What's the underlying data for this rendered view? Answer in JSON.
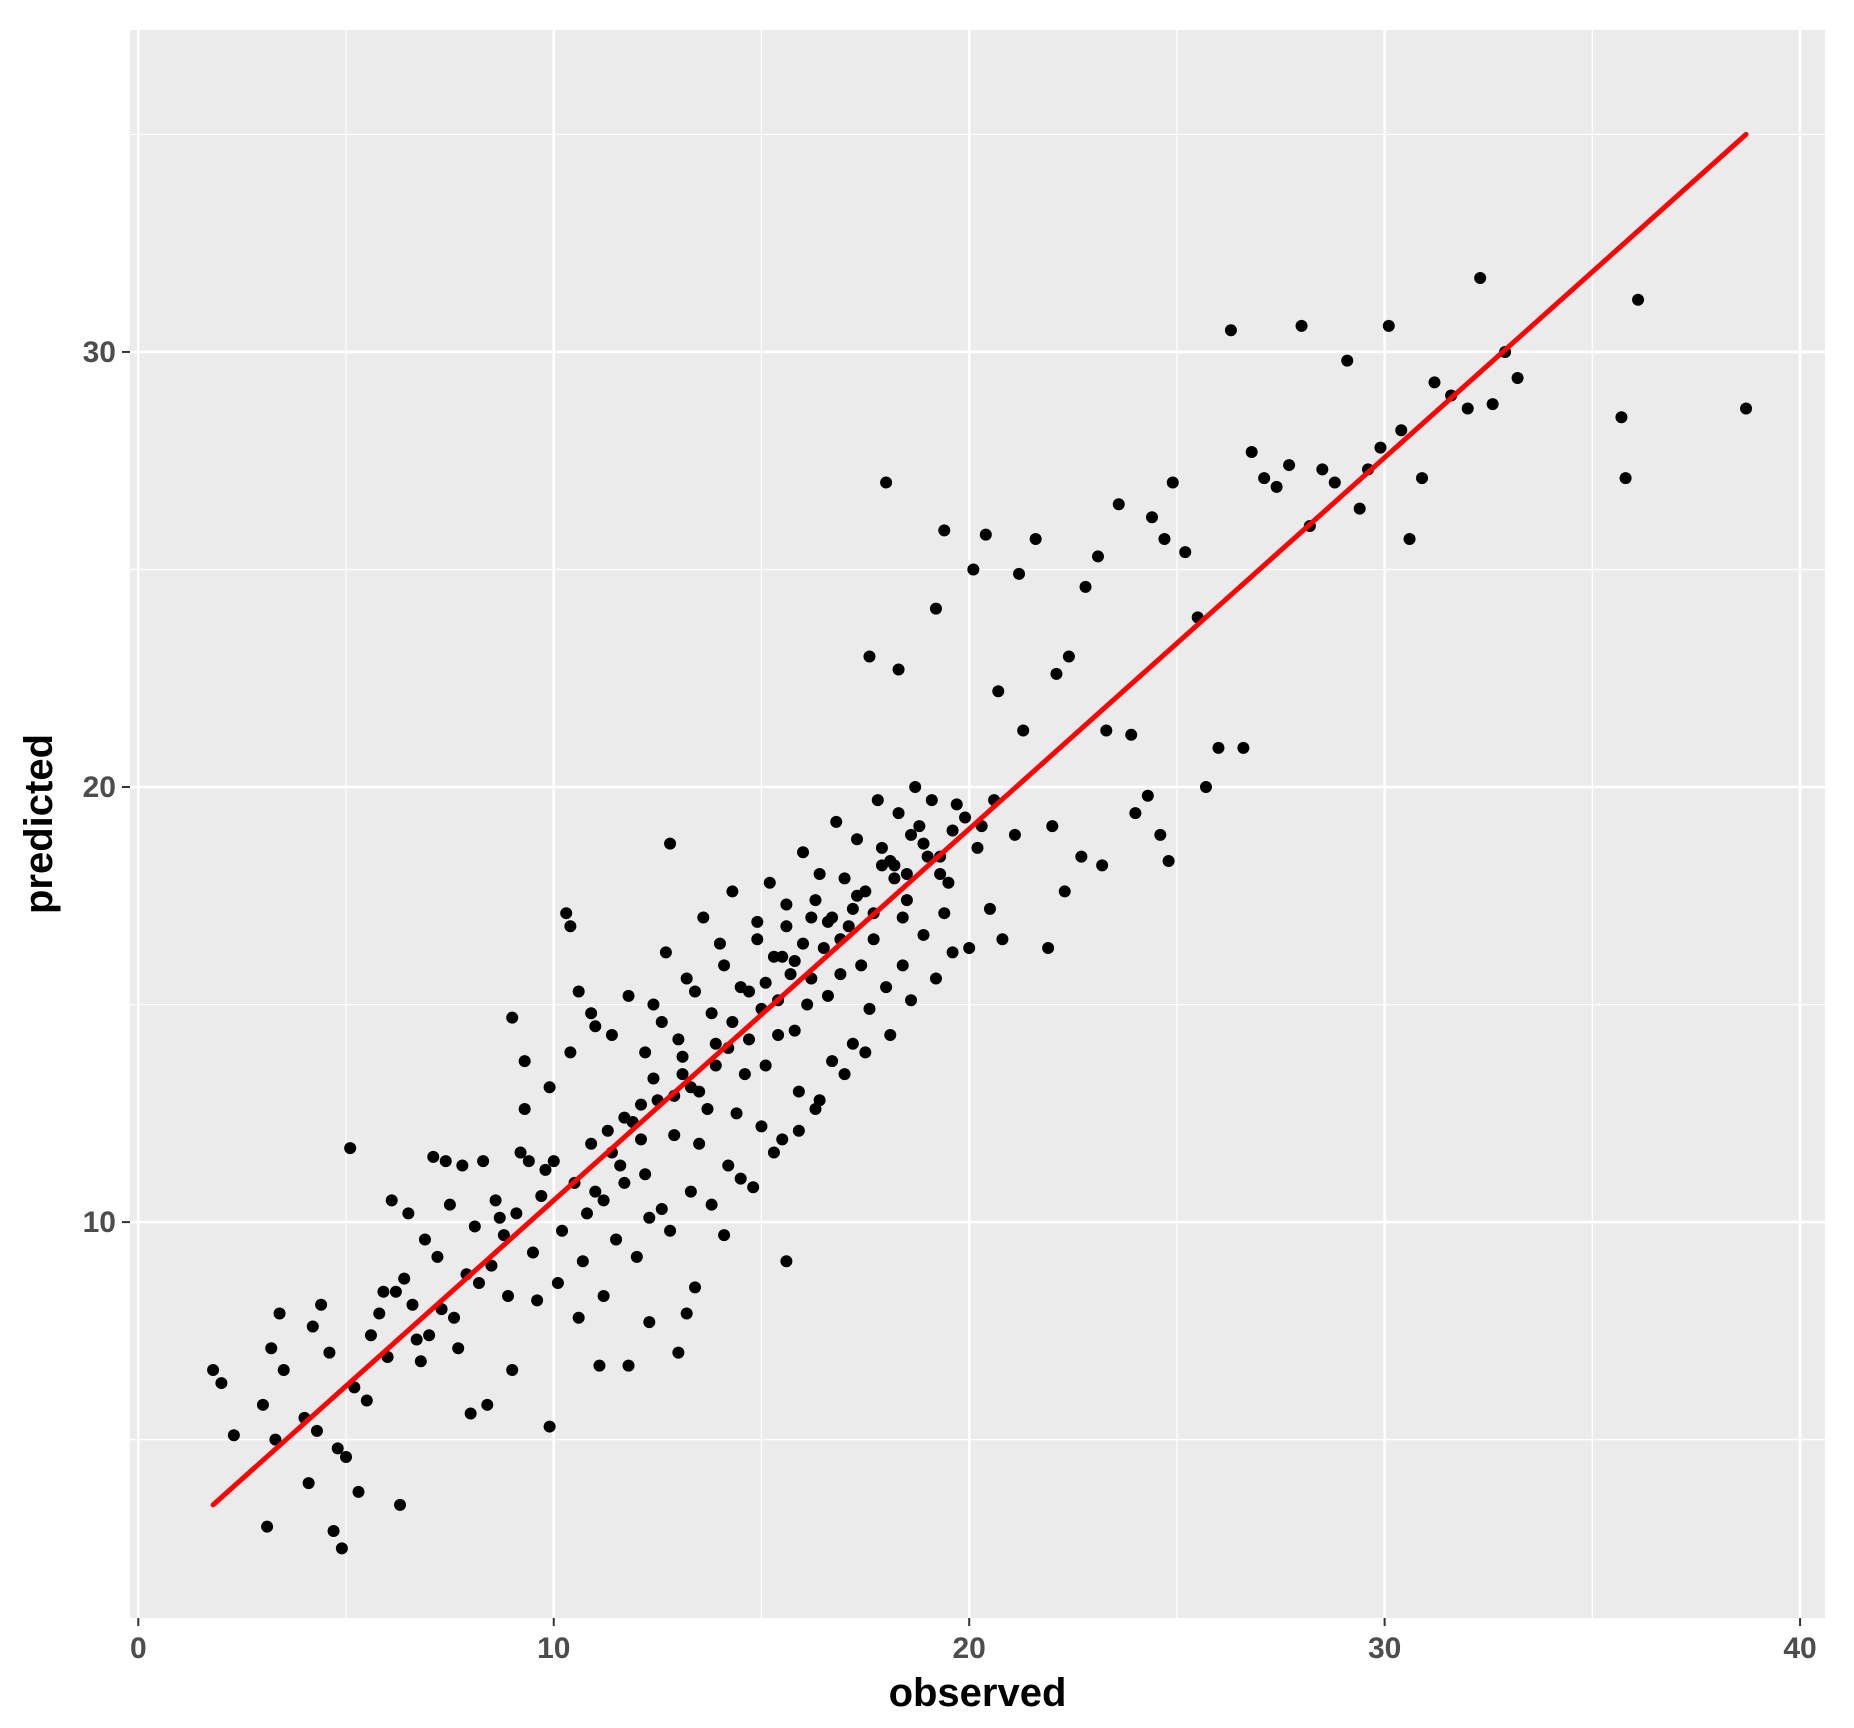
{
  "chart_data": {
    "type": "scatter",
    "title": "",
    "xlabel": "observed",
    "ylabel": "predicted",
    "xlim": [
      -0.2,
      40.6
    ],
    "ylim": [
      0.9,
      37.4
    ],
    "x_ticks": [
      0,
      10,
      20,
      30,
      40
    ],
    "y_ticks": [
      10,
      20,
      30
    ],
    "grid": true,
    "legend": "none",
    "colors": {
      "panel_background": "#ebebeb",
      "grid": "#ffffff",
      "points": "#000000",
      "fit_line": "#ff0000"
    },
    "fit_line": {
      "x": [
        1.8,
        38.7
      ],
      "y": [
        3.5,
        35.0
      ]
    },
    "series": [
      {
        "values": [
          [
            1.8,
            6.6
          ],
          [
            2.0,
            6.3
          ],
          [
            3.0,
            5.8
          ],
          [
            3.1,
            3.0
          ],
          [
            3.4,
            7.9
          ],
          [
            3.5,
            6.6
          ],
          [
            3.3,
            5.0
          ],
          [
            4.0,
            5.5
          ],
          [
            4.1,
            4.0
          ],
          [
            4.3,
            5.2
          ],
          [
            4.2,
            7.6
          ],
          [
            4.6,
            7.0
          ],
          [
            4.7,
            2.9
          ],
          [
            4.8,
            4.8
          ],
          [
            5.0,
            4.6
          ],
          [
            5.2,
            6.2
          ],
          [
            5.3,
            3.8
          ],
          [
            5.5,
            5.9
          ],
          [
            5.6,
            7.4
          ],
          [
            5.9,
            8.4
          ],
          [
            6.0,
            6.9
          ],
          [
            6.3,
            3.5
          ],
          [
            6.6,
            8.1
          ],
          [
            6.8,
            6.8
          ],
          [
            3.2,
            7.1
          ],
          [
            4.4,
            8.1
          ],
          [
            2.3,
            5.1
          ],
          [
            4.9,
            2.5
          ],
          [
            5.1,
            11.7
          ],
          [
            6.1,
            10.5
          ],
          [
            6.5,
            10.2
          ],
          [
            7.1,
            11.5
          ],
          [
            7.4,
            11.4
          ],
          [
            7.8,
            11.3
          ],
          [
            8.3,
            11.4
          ],
          [
            8.6,
            10.5
          ],
          [
            9.2,
            11.6
          ],
          [
            9.4,
            11.4
          ],
          [
            9.0,
            14.7
          ],
          [
            9.3,
            13.7
          ],
          [
            10.3,
            17.1
          ],
          [
            10.6,
            15.3
          ],
          [
            10.4,
            16.8
          ],
          [
            11.0,
            14.5
          ],
          [
            8.0,
            5.6
          ],
          [
            8.4,
            5.8
          ],
          [
            9.0,
            6.6
          ],
          [
            9.9,
            5.3
          ],
          [
            10.6,
            7.8
          ],
          [
            11.1,
            6.7
          ],
          [
            11.8,
            6.7
          ],
          [
            12.3,
            7.7
          ],
          [
            13.2,
            7.9
          ],
          [
            15.6,
            9.1
          ],
          [
            12.8,
            18.7
          ],
          [
            17.6,
            23.0
          ],
          [
            18.0,
            27.0
          ],
          [
            18.3,
            22.7
          ],
          [
            19.2,
            24.1
          ],
          [
            19.4,
            25.9
          ],
          [
            20.1,
            25.0
          ],
          [
            20.4,
            25.8
          ],
          [
            20.7,
            22.2
          ],
          [
            21.3,
            21.3
          ],
          [
            21.2,
            24.9
          ],
          [
            21.6,
            25.7
          ],
          [
            22.1,
            22.6
          ],
          [
            22.4,
            23.0
          ],
          [
            22.8,
            24.6
          ],
          [
            23.1,
            25.3
          ],
          [
            23.3,
            21.3
          ],
          [
            23.6,
            26.5
          ],
          [
            23.9,
            21.2
          ],
          [
            24.4,
            26.2
          ],
          [
            24.7,
            25.7
          ],
          [
            24.9,
            27.0
          ],
          [
            25.2,
            25.4
          ],
          [
            25.5,
            23.9
          ],
          [
            25.7,
            20.0
          ],
          [
            26.0,
            20.9
          ],
          [
            26.3,
            30.5
          ],
          [
            26.6,
            20.9
          ],
          [
            26.8,
            27.7
          ],
          [
            27.1,
            27.1
          ],
          [
            27.4,
            26.9
          ],
          [
            27.7,
            27.4
          ],
          [
            28.0,
            30.6
          ],
          [
            28.2,
            26.0
          ],
          [
            28.5,
            27.3
          ],
          [
            28.8,
            27.0
          ],
          [
            29.1,
            29.8
          ],
          [
            29.4,
            26.4
          ],
          [
            29.6,
            27.3
          ],
          [
            29.9,
            27.8
          ],
          [
            30.1,
            30.6
          ],
          [
            30.4,
            28.2
          ],
          [
            30.6,
            25.7
          ],
          [
            30.9,
            27.1
          ],
          [
            31.2,
            29.3
          ],
          [
            31.6,
            29.0
          ],
          [
            32.0,
            28.7
          ],
          [
            32.3,
            31.7
          ],
          [
            32.6,
            28.8
          ],
          [
            32.9,
            30.0
          ],
          [
            33.2,
            29.4
          ],
          [
            35.7,
            28.5
          ],
          [
            35.8,
            27.1
          ],
          [
            36.1,
            31.2
          ],
          [
            38.7,
            28.7
          ],
          [
            24.0,
            19.4
          ],
          [
            24.3,
            19.8
          ],
          [
            24.6,
            18.9
          ],
          [
            24.8,
            18.3
          ],
          [
            22.0,
            19.1
          ],
          [
            22.3,
            17.6
          ],
          [
            22.7,
            18.4
          ],
          [
            23.2,
            18.2
          ],
          [
            21.9,
            16.3
          ],
          [
            20.5,
            17.2
          ],
          [
            20.0,
            16.3
          ],
          [
            20.8,
            16.5
          ],
          [
            13.0,
            7.0
          ],
          [
            13.4,
            8.5
          ],
          [
            14.1,
            9.7
          ],
          [
            14.8,
            10.8
          ],
          [
            15.3,
            11.6
          ],
          [
            15.9,
            12.1
          ],
          [
            16.4,
            12.8
          ],
          [
            17.0,
            13.4
          ],
          [
            17.5,
            13.9
          ],
          [
            18.1,
            14.3
          ],
          [
            18.6,
            15.1
          ],
          [
            19.2,
            15.6
          ],
          [
            19.6,
            16.2
          ],
          [
            6.9,
            9.6
          ],
          [
            7.2,
            9.2
          ],
          [
            7.5,
            10.4
          ],
          [
            7.9,
            8.8
          ],
          [
            8.1,
            9.9
          ],
          [
            8.7,
            10.1
          ],
          [
            9.5,
            9.3
          ],
          [
            9.8,
            11.2
          ],
          [
            6.4,
            8.7
          ],
          [
            7.0,
            7.4
          ],
          [
            7.6,
            7.8
          ],
          [
            8.2,
            8.6
          ],
          [
            8.8,
            9.7
          ],
          [
            9.6,
            8.2
          ],
          [
            10.0,
            11.4
          ],
          [
            10.8,
            10.2
          ],
          [
            11.3,
            12.1
          ],
          [
            11.7,
            10.9
          ],
          [
            12.1,
            12.7
          ],
          [
            12.6,
            10.3
          ],
          [
            13.1,
            13.4
          ],
          [
            13.5,
            11.8
          ],
          [
            13.9,
            14.1
          ],
          [
            14.4,
            12.5
          ],
          [
            14.7,
            15.3
          ],
          [
            15.1,
            13.6
          ],
          [
            15.5,
            16.1
          ],
          [
            15.8,
            14.4
          ],
          [
            16.2,
            17.0
          ],
          [
            16.6,
            15.2
          ],
          [
            17.1,
            16.8
          ],
          [
            17.4,
            15.9
          ],
          [
            17.9,
            18.2
          ],
          [
            18.4,
            17.0
          ],
          [
            18.8,
            19.1
          ],
          [
            19.3,
            18.0
          ],
          [
            19.7,
            19.6
          ],
          [
            20.2,
            18.6
          ],
          [
            20.6,
            19.7
          ],
          [
            21.1,
            18.9
          ],
          [
            5.8,
            7.9
          ],
          [
            6.2,
            8.4
          ],
          [
            6.7,
            7.3
          ],
          [
            7.3,
            8.0
          ],
          [
            7.7,
            7.1
          ],
          [
            8.5,
            9.0
          ],
          [
            8.9,
            8.3
          ],
          [
            9.1,
            10.2
          ],
          [
            9.7,
            10.6
          ],
          [
            10.2,
            9.8
          ],
          [
            10.5,
            10.9
          ],
          [
            10.9,
            11.8
          ],
          [
            11.2,
            10.5
          ],
          [
            11.6,
            11.3
          ],
          [
            11.9,
            12.3
          ],
          [
            12.2,
            11.1
          ],
          [
            12.5,
            12.8
          ],
          [
            12.9,
            12.0
          ],
          [
            13.3,
            13.1
          ],
          [
            13.7,
            12.6
          ],
          [
            14.2,
            14.0
          ],
          [
            14.6,
            13.4
          ],
          [
            15.0,
            14.9
          ],
          [
            15.4,
            14.3
          ],
          [
            15.7,
            15.7
          ],
          [
            16.1,
            15.0
          ],
          [
            16.5,
            16.3
          ],
          [
            16.9,
            15.7
          ],
          [
            17.2,
            17.2
          ],
          [
            17.7,
            16.5
          ],
          [
            18.2,
            17.9
          ],
          [
            18.5,
            17.4
          ],
          [
            19.0,
            18.4
          ],
          [
            19.5,
            17.8
          ],
          [
            19.9,
            19.3
          ],
          [
            20.3,
            19.1
          ],
          [
            9.3,
            12.6
          ],
          [
            9.9,
            13.1
          ],
          [
            10.4,
            13.9
          ],
          [
            10.9,
            14.8
          ],
          [
            11.4,
            14.3
          ],
          [
            11.8,
            15.2
          ],
          [
            12.4,
            15.0
          ],
          [
            12.7,
            16.2
          ],
          [
            13.2,
            15.6
          ],
          [
            13.6,
            17.0
          ],
          [
            14.0,
            16.4
          ],
          [
            14.3,
            17.6
          ],
          [
            14.9,
            16.9
          ],
          [
            15.2,
            17.8
          ],
          [
            15.6,
            17.3
          ],
          [
            16.0,
            18.5
          ],
          [
            16.4,
            18.0
          ],
          [
            16.8,
            19.2
          ],
          [
            17.3,
            18.8
          ],
          [
            17.8,
            19.7
          ],
          [
            18.3,
            19.4
          ],
          [
            18.7,
            20.0
          ],
          [
            19.1,
            19.7
          ],
          [
            10.1,
            8.6
          ],
          [
            10.7,
            9.1
          ],
          [
            11.2,
            8.3
          ],
          [
            11.5,
            9.6
          ],
          [
            12.0,
            9.2
          ],
          [
            12.3,
            10.1
          ],
          [
            12.8,
            9.8
          ],
          [
            13.3,
            10.7
          ],
          [
            13.8,
            10.4
          ],
          [
            14.2,
            11.3
          ],
          [
            14.5,
            11.0
          ],
          [
            15.0,
            12.2
          ],
          [
            15.5,
            11.9
          ],
          [
            15.9,
            13.0
          ],
          [
            16.3,
            12.6
          ],
          [
            16.7,
            13.7
          ],
          [
            17.2,
            14.1
          ],
          [
            17.6,
            14.9
          ],
          [
            18.0,
            15.4
          ],
          [
            18.4,
            15.9
          ],
          [
            18.9,
            16.6
          ],
          [
            19.4,
            17.1
          ],
          [
            12.2,
            13.9
          ],
          [
            12.6,
            14.6
          ],
          [
            13.0,
            14.2
          ],
          [
            13.4,
            15.3
          ],
          [
            13.8,
            14.8
          ],
          [
            14.1,
            15.9
          ],
          [
            14.5,
            15.4
          ],
          [
            14.9,
            16.5
          ],
          [
            15.3,
            16.1
          ],
          [
            15.6,
            16.8
          ],
          [
            16.0,
            16.4
          ],
          [
            16.3,
            17.4
          ],
          [
            16.7,
            17.0
          ],
          [
            17.0,
            17.9
          ],
          [
            17.5,
            17.6
          ],
          [
            17.9,
            18.6
          ],
          [
            18.2,
            18.2
          ],
          [
            18.6,
            18.9
          ],
          [
            11.0,
            10.7
          ],
          [
            11.4,
            11.6
          ],
          [
            11.7,
            12.4
          ],
          [
            12.1,
            11.9
          ],
          [
            12.4,
            13.3
          ],
          [
            12.9,
            12.9
          ],
          [
            13.1,
            13.8
          ],
          [
            13.5,
            13.0
          ],
          [
            13.9,
            13.6
          ],
          [
            14.3,
            14.6
          ],
          [
            14.7,
            14.2
          ],
          [
            15.1,
            15.5
          ],
          [
            15.4,
            15.1
          ],
          [
            15.8,
            16.0
          ],
          [
            16.2,
            15.6
          ],
          [
            16.6,
            16.9
          ],
          [
            16.9,
            16.5
          ],
          [
            17.3,
            17.5
          ],
          [
            17.7,
            17.1
          ],
          [
            18.1,
            18.3
          ],
          [
            18.5,
            18.0
          ],
          [
            18.9,
            18.7
          ],
          [
            19.3,
            18.4
          ],
          [
            19.6,
            19.0
          ]
        ]
      }
    ]
  }
}
